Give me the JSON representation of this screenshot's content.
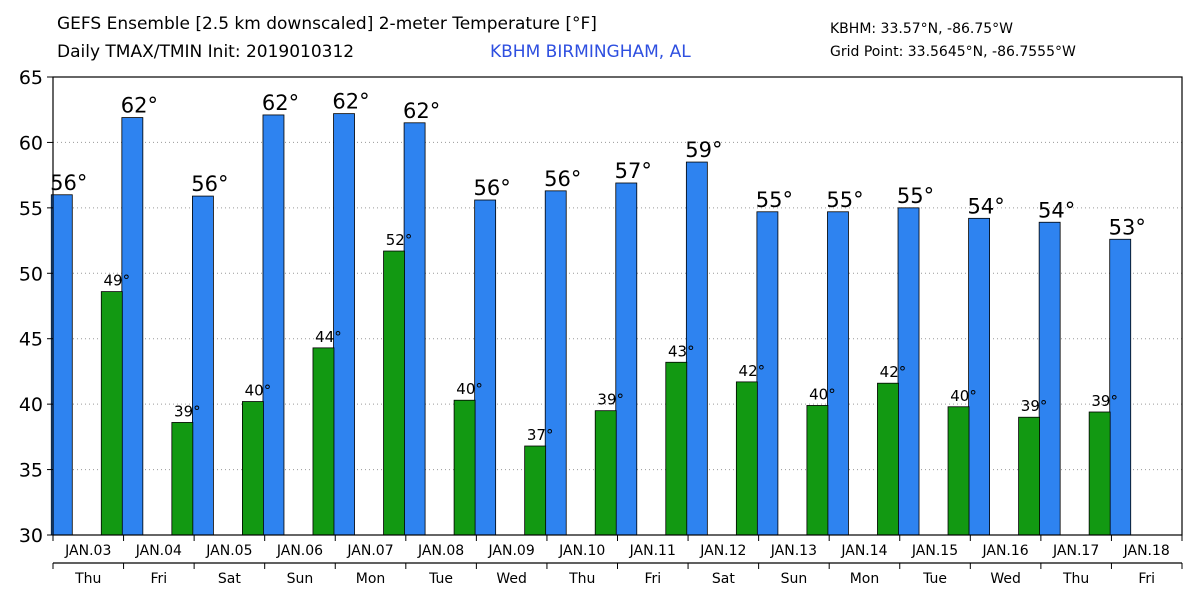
{
  "header": {
    "title_line1": "GEFS Ensemble [2.5 km downscaled] 2-meter Temperature [°F]",
    "title_line2": "Daily TMAX/TMIN Init: 2019010312",
    "location": "KBHM BIRMINGHAM, AL",
    "station": "KBHM: 33.57°N, -86.75°W",
    "grid_point": "Grid Point: 33.5645°N, -86.7555°W"
  },
  "colors": {
    "tmax": "#2e83f0",
    "tmin": "#129912",
    "location_text": "#2e4fe0"
  },
  "chart_data": {
    "type": "bar",
    "ylim": [
      30,
      65
    ],
    "yticks": [
      30,
      35,
      40,
      45,
      50,
      55,
      60,
      65
    ],
    "grid": true,
    "categories": [
      "JAN.03",
      "JAN.04",
      "JAN.05",
      "JAN.06",
      "JAN.07",
      "JAN.08",
      "JAN.09",
      "JAN.10",
      "JAN.11",
      "JAN.12",
      "JAN.13",
      "JAN.14",
      "JAN.15",
      "JAN.16",
      "JAN.17",
      "JAN.18"
    ],
    "days": [
      "Thu",
      "Fri",
      "Sat",
      "Sun",
      "Mon",
      "Tue",
      "Wed",
      "Thu",
      "Fri",
      "Sat",
      "Sun",
      "Mon",
      "Tue",
      "Wed",
      "Thu",
      "Fri"
    ],
    "series": [
      {
        "key": "tmax",
        "values": [
          56.0,
          61.9,
          55.9,
          62.1,
          62.2,
          61.5,
          55.6,
          56.3,
          56.9,
          58.5,
          54.7,
          54.7,
          55.0,
          54.2,
          53.9,
          52.6
        ],
        "labels": [
          "56°",
          "62°",
          "56°",
          "62°",
          "62°",
          "62°",
          "56°",
          "56°",
          "57°",
          "59°",
          "55°",
          "55°",
          "55°",
          "54°",
          "54°",
          "53°"
        ]
      },
      {
        "key": "tmin",
        "values": [
          48.6,
          38.6,
          40.2,
          44.3,
          51.7,
          40.3,
          36.8,
          39.5,
          43.2,
          41.7,
          39.9,
          41.6,
          39.8,
          39.0,
          39.4,
          null
        ],
        "labels": [
          "49°",
          "39°",
          "40°",
          "44°",
          "52°",
          "40°",
          "37°",
          "39°",
          "43°",
          "42°",
          "40°",
          "42°",
          "40°",
          "39°",
          "39°",
          ""
        ]
      }
    ]
  }
}
